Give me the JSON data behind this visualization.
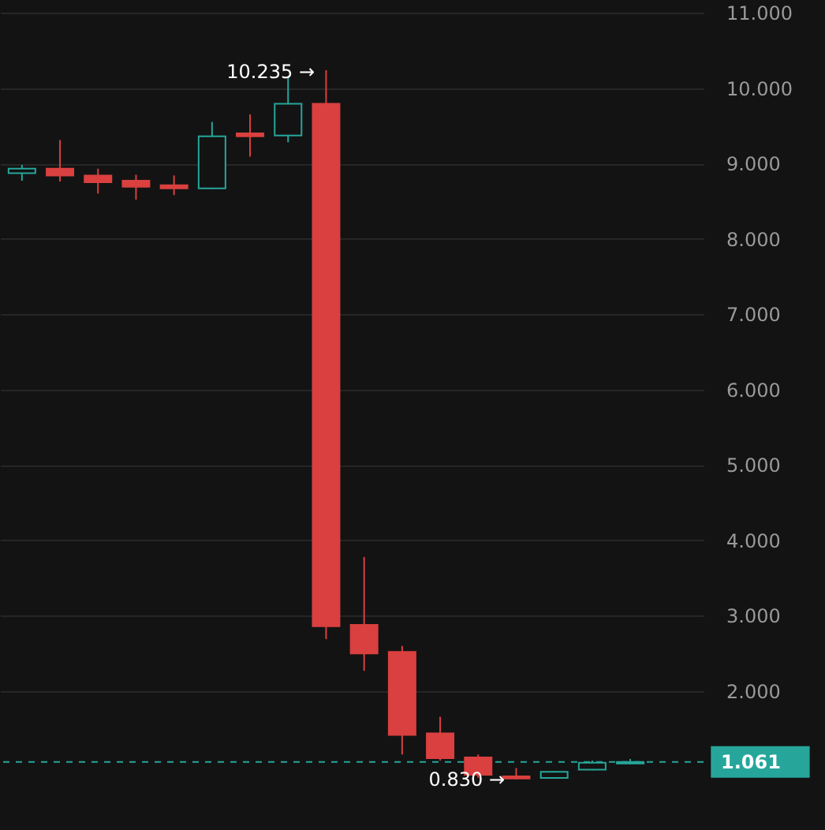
{
  "chart_data": {
    "type": "candlestick",
    "categories": [
      null,
      null,
      null,
      null,
      null,
      null,
      null,
      null,
      null,
      null,
      null,
      null,
      null,
      null,
      null,
      null,
      null
    ],
    "ohlc": [
      [
        8.87,
        8.98,
        8.77,
        8.93
      ],
      [
        8.93,
        9.31,
        8.76,
        8.84
      ],
      [
        8.84,
        8.93,
        8.6,
        8.75
      ],
      [
        8.77,
        8.85,
        8.52,
        8.69
      ],
      [
        8.71,
        8.84,
        8.58,
        8.67
      ],
      [
        8.67,
        9.55,
        8.66,
        9.36
      ],
      [
        9.4,
        9.65,
        9.09,
        9.36
      ],
      [
        9.37,
        10.15,
        9.28,
        9.79
      ],
      [
        9.79,
        10.235,
        2.69,
        2.86
      ],
      [
        2.88,
        3.78,
        2.27,
        2.5
      ],
      [
        2.52,
        2.6,
        1.16,
        1.42
      ],
      [
        1.44,
        1.66,
        1.08,
        1.11
      ],
      [
        1.12,
        1.16,
        0.85,
        0.89
      ],
      [
        0.87,
        0.98,
        0.83,
        0.84
      ],
      [
        0.85,
        0.94,
        0.84,
        0.93
      ],
      [
        0.96,
        1.08,
        0.95,
        1.05
      ],
      [
        1.04,
        1.1,
        1.03,
        1.061
      ]
    ],
    "colors": [
      "#26a69a",
      "#d9403f",
      "#d9403f",
      "#d9403f",
      "#d9403f",
      "#26a69a",
      "#d9403f",
      "#26a69a",
      "#d9403f",
      "#d9403f",
      "#d9403f",
      "#d9403f",
      "#d9403f",
      "#d9403f",
      "#26a69a",
      "#26a69a",
      "#26a69a"
    ],
    "ylim": [
      0.2,
      11
    ],
    "yticks": [
      {
        "value": 2,
        "label": "2.000"
      },
      {
        "value": 3,
        "label": "3.000"
      },
      {
        "value": 4,
        "label": "4.000"
      },
      {
        "value": 5,
        "label": "5.000"
      },
      {
        "value": 6,
        "label": "6.000"
      },
      {
        "value": 7,
        "label": "7.000"
      },
      {
        "value": 8,
        "label": "8.000"
      },
      {
        "value": 9,
        "label": "9.000"
      },
      {
        "value": 10,
        "label": "10.000"
      },
      {
        "value": 11,
        "label": "11.000"
      }
    ],
    "grid": "y",
    "ref_lines": [
      {
        "axis": "y",
        "value": 1.061,
        "label": "1.061",
        "color": "#26a69a",
        "line_style": "dashed"
      }
    ],
    "annotations": [
      "10.235 →",
      "0.830 →"
    ]
  }
}
